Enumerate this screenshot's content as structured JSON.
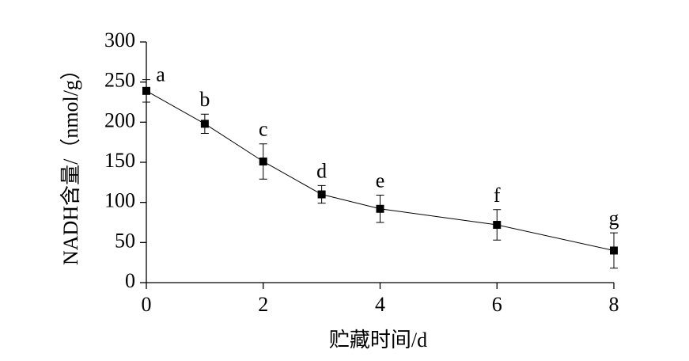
{
  "chart_data": {
    "type": "line",
    "xlabel": "贮藏时间/d",
    "ylabel": "NADH含量/（nmol/g）",
    "x": [
      0,
      1,
      2,
      3,
      4,
      6,
      8
    ],
    "series": [
      {
        "color": "#000000",
        "values": [
          239,
          198,
          151,
          110,
          92,
          72,
          40
        ],
        "errors": [
          14,
          12,
          22,
          11,
          17,
          19,
          22
        ],
        "point_labels": [
          "a",
          "b",
          "c",
          "d",
          "e",
          "f",
          "g"
        ]
      }
    ],
    "xlim": [
      0,
      8
    ],
    "xticks": [
      0,
      2,
      4,
      6,
      8
    ],
    "ylim": [
      0,
      300
    ],
    "yticks": [
      0,
      50,
      100,
      150,
      200,
      250,
      300
    ]
  }
}
